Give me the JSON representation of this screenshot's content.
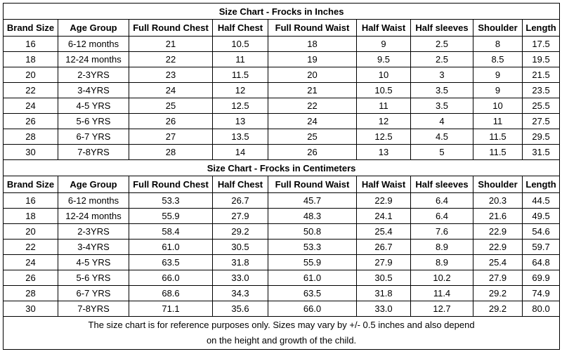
{
  "sections": [
    {
      "title": "Size Chart - Frocks in Inches",
      "headers": [
        "Brand Size",
        "Age Group",
        "Full Round Chest",
        "Half Chest",
        "Full Round Waist",
        "Half Waist",
        "Half sleeves",
        "Shoulder",
        "Length"
      ],
      "rows": [
        [
          "16",
          "6-12 months",
          "21",
          "10.5",
          "18",
          "9",
          "2.5",
          "8",
          "17.5"
        ],
        [
          "18",
          "12-24 months",
          "22",
          "11",
          "19",
          "9.5",
          "2.5",
          "8.5",
          "19.5"
        ],
        [
          "20",
          "2-3YRS",
          "23",
          "11.5",
          "20",
          "10",
          "3",
          "9",
          "21.5"
        ],
        [
          "22",
          "3-4YRS",
          "24",
          "12",
          "21",
          "10.5",
          "3.5",
          "9",
          "23.5"
        ],
        [
          "24",
          "4-5 YRS",
          "25",
          "12.5",
          "22",
          "11",
          "3.5",
          "10",
          "25.5"
        ],
        [
          "26",
          "5-6 YRS",
          "26",
          "13",
          "24",
          "12",
          "4",
          "11",
          "27.5"
        ],
        [
          "28",
          "6-7 YRS",
          "27",
          "13.5",
          "25",
          "12.5",
          "4.5",
          "11.5",
          "29.5"
        ],
        [
          "30",
          "7-8YRS",
          "28",
          "14",
          "26",
          "13",
          "5",
          "11.5",
          "31.5"
        ]
      ]
    },
    {
      "title": "Size Chart - Frocks in Centimeters",
      "headers": [
        "Brand Size",
        "Age Group",
        "Full Round Chest",
        "Half Chest",
        "Full Round Waist",
        "Half Waist",
        "Half sleeves",
        "Shoulder",
        "Length"
      ],
      "rows": [
        [
          "16",
          "6-12 months",
          "53.3",
          "26.7",
          "45.7",
          "22.9",
          "6.4",
          "20.3",
          "44.5"
        ],
        [
          "18",
          "12-24 months",
          "55.9",
          "27.9",
          "48.3",
          "24.1",
          "6.4",
          "21.6",
          "49.5"
        ],
        [
          "20",
          "2-3YRS",
          "58.4",
          "29.2",
          "50.8",
          "25.4",
          "7.6",
          "22.9",
          "54.6"
        ],
        [
          "22",
          "3-4YRS",
          "61.0",
          "30.5",
          "53.3",
          "26.7",
          "8.9",
          "22.9",
          "59.7"
        ],
        [
          "24",
          "4-5 YRS",
          "63.5",
          "31.8",
          "55.9",
          "27.9",
          "8.9",
          "25.4",
          "64.8"
        ],
        [
          "26",
          "5-6 YRS",
          "66.0",
          "33.0",
          "61.0",
          "30.5",
          "10.2",
          "27.9",
          "69.9"
        ],
        [
          "28",
          "6-7 YRS",
          "68.6",
          "34.3",
          "63.5",
          "31.8",
          "11.4",
          "29.2",
          "74.9"
        ],
        [
          "30",
          "7-8YRS",
          "71.1",
          "35.6",
          "66.0",
          "33.0",
          "12.7",
          "29.2",
          "80.0"
        ]
      ]
    }
  ],
  "footer": [
    "The size chart is for reference purposes only. Sizes may vary by +/- 0.5 inches and also depend",
    "on the height and growth of the child."
  ]
}
